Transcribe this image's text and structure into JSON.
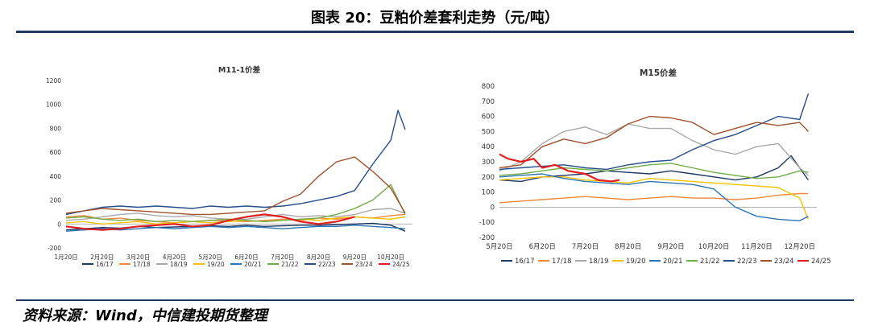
{
  "page": {
    "title": "图表 20：豆粕价差套利走势（元/吨）",
    "source": "资料来源：Wind，中信建投期货整理"
  },
  "colors": {
    "16/17": "#1f3864",
    "17/18": "#f0893c",
    "18/19": "#a9a9a9",
    "19/20": "#f2c200",
    "20/21": "#2e75b6",
    "21/22": "#70ad47",
    "22/23": "#264e8c",
    "23/24": "#a0522d",
    "24/25": "#e02020"
  },
  "chart_data": [
    {
      "type": "line",
      "title": "M11-1价差",
      "ylim": [
        -200,
        1200
      ],
      "yticks": [
        -200,
        0,
        200,
        400,
        600,
        800,
        1000,
        1200
      ],
      "categories": [
        "1月20日",
        "2月20日",
        "3月20日",
        "4月20日",
        "5月20日",
        "6月20日",
        "7月20日",
        "8月20日",
        "9月20日",
        "10月20日"
      ],
      "x_range": [
        0,
        9.6
      ],
      "series": [
        {
          "name": "16/17",
          "x": [
            0,
            0.5,
            1,
            1.5,
            2,
            2.5,
            3,
            3.5,
            4,
            4.5,
            5,
            5.5,
            6,
            6.5,
            7,
            7.5,
            8,
            8.5,
            9,
            9.4
          ],
          "values": [
            -50,
            -40,
            -30,
            -35,
            -20,
            -30,
            -25,
            -20,
            -15,
            -20,
            -10,
            -20,
            -15,
            -10,
            -10,
            -5,
            0,
            5,
            -10,
            -60
          ]
        },
        {
          "name": "17/18",
          "x": [
            0,
            0.5,
            1,
            1.5,
            2,
            2.5,
            3,
            3.5,
            4,
            4.5,
            5,
            5.5,
            6,
            6.5,
            7,
            7.5,
            8,
            8.5,
            9,
            9.4
          ],
          "values": [
            60,
            70,
            40,
            50,
            30,
            20,
            10,
            20,
            30,
            25,
            20,
            30,
            40,
            30,
            50,
            40,
            60,
            50,
            70,
            80
          ]
        },
        {
          "name": "18/19",
          "x": [
            0,
            0.5,
            1,
            1.5,
            2,
            2.5,
            3,
            3.5,
            4,
            4.5,
            5,
            5.5,
            6,
            6.5,
            7,
            7.5,
            8,
            8.5,
            9,
            9.4
          ],
          "values": [
            30,
            40,
            60,
            80,
            90,
            70,
            60,
            70,
            50,
            40,
            40,
            60,
            80,
            60,
            70,
            60,
            80,
            120,
            130,
            90
          ]
        },
        {
          "name": "19/20",
          "x": [
            0,
            0.5,
            1,
            1.5,
            2,
            2.5,
            3,
            3.5,
            4,
            4.5,
            5,
            5.5,
            6,
            6.5,
            7,
            7.5,
            8,
            8.5,
            9,
            9.4
          ],
          "values": [
            10,
            20,
            0,
            10,
            20,
            0,
            10,
            20,
            10,
            20,
            30,
            20,
            30,
            40,
            30,
            50,
            60,
            50,
            40,
            60
          ]
        },
        {
          "name": "20/21",
          "x": [
            0,
            0.5,
            1,
            1.5,
            2,
            2.5,
            3,
            3.5,
            4,
            4.5,
            5,
            5.5,
            6,
            6.5,
            7,
            7.5,
            8,
            8.5,
            9,
            9.4
          ],
          "values": [
            -60,
            -50,
            -40,
            -50,
            -40,
            -30,
            -40,
            -30,
            -20,
            -30,
            -20,
            -30,
            -40,
            -30,
            -20,
            -20,
            -10,
            -20,
            -30,
            -40
          ]
        },
        {
          "name": "21/22",
          "x": [
            0,
            0.5,
            1,
            1.5,
            2,
            2.5,
            3,
            3.5,
            4,
            4.5,
            5,
            5.5,
            6,
            6.5,
            7,
            7.5,
            8,
            8.5,
            9,
            9.4
          ],
          "values": [
            50,
            60,
            40,
            30,
            40,
            20,
            30,
            20,
            30,
            40,
            30,
            20,
            30,
            40,
            50,
            80,
            130,
            200,
            330,
            80
          ]
        },
        {
          "name": "22/23",
          "x": [
            0,
            0.5,
            1,
            1.5,
            2,
            2.5,
            3,
            3.5,
            4,
            4.5,
            5,
            5.5,
            6,
            6.5,
            7,
            7.5,
            8,
            8.5,
            9,
            9.2,
            9.4
          ],
          "values": [
            80,
            110,
            140,
            150,
            140,
            150,
            140,
            130,
            150,
            140,
            150,
            140,
            150,
            170,
            200,
            230,
            280,
            500,
            700,
            950,
            790
          ]
        },
        {
          "name": "23/24",
          "x": [
            0,
            0.5,
            1,
            1.5,
            2,
            2.5,
            3,
            3.5,
            4,
            4.5,
            5,
            5.5,
            6,
            6.5,
            7,
            7.5,
            8,
            8.5,
            9,
            9.4
          ],
          "values": [
            90,
            110,
            130,
            120,
            110,
            100,
            90,
            80,
            80,
            90,
            100,
            110,
            190,
            250,
            400,
            520,
            560,
            440,
            300,
            90
          ]
        },
        {
          "name": "24/25",
          "x": [
            0,
            0.5,
            1,
            1.5,
            2,
            2.5,
            3,
            3.5,
            4,
            4.5,
            5,
            5.5,
            6,
            6.5,
            7,
            7.5,
            8
          ],
          "values": [
            -20,
            -40,
            -50,
            -40,
            -20,
            -10,
            0,
            -20,
            -10,
            30,
            60,
            80,
            60,
            20,
            0,
            20,
            60
          ]
        }
      ]
    },
    {
      "type": "line",
      "title": "M15价差",
      "ylim": [
        -200,
        800
      ],
      "yticks": [
        -200,
        -100,
        0,
        100,
        200,
        300,
        400,
        500,
        600,
        700,
        800
      ],
      "categories": [
        "5月20日",
        "6月20日",
        "7月20日",
        "8月20日",
        "9月20日",
        "10月20日",
        "11月20日",
        "12月20日"
      ],
      "x_range": [
        0,
        7.4
      ],
      "series": [
        {
          "name": "16/17",
          "x": [
            0,
            0.5,
            1,
            1.5,
            2,
            2.5,
            3,
            3.5,
            4,
            4.5,
            5,
            5.5,
            6,
            6.5,
            6.8,
            7,
            7.2
          ],
          "values": [
            180,
            170,
            200,
            210,
            220,
            240,
            230,
            220,
            240,
            220,
            200,
            180,
            200,
            260,
            340,
            260,
            180
          ]
        },
        {
          "name": "17/18",
          "x": [
            0,
            0.5,
            1,
            1.5,
            2,
            2.5,
            3,
            3.5,
            4,
            4.5,
            5,
            5.5,
            6,
            6.5,
            7,
            7.2
          ],
          "values": [
            30,
            40,
            50,
            60,
            70,
            60,
            50,
            60,
            70,
            60,
            60,
            50,
            60,
            80,
            90,
            90
          ]
        },
        {
          "name": "18/19",
          "x": [
            0,
            0.5,
            1,
            1.5,
            2,
            2.5,
            3,
            3.5,
            4,
            4.5,
            5,
            5.5,
            6,
            6.5,
            7,
            7.2
          ],
          "values": [
            240,
            300,
            420,
            500,
            530,
            480,
            550,
            520,
            520,
            440,
            380,
            350,
            400,
            420,
            260,
            210
          ]
        },
        {
          "name": "19/20",
          "x": [
            0,
            0.5,
            1,
            1.5,
            2,
            2.5,
            3,
            3.5,
            4,
            4.5,
            5,
            5.5,
            6,
            6.5,
            7,
            7.2
          ],
          "values": [
            180,
            190,
            200,
            200,
            180,
            170,
            160,
            190,
            180,
            170,
            160,
            150,
            140,
            130,
            60,
            -80
          ]
        },
        {
          "name": "20/21",
          "x": [
            0,
            0.5,
            1,
            1.5,
            2,
            2.5,
            3,
            3.5,
            4,
            4.5,
            5,
            5.5,
            6,
            6.5,
            7,
            7.2
          ],
          "values": [
            200,
            210,
            220,
            190,
            170,
            160,
            150,
            170,
            160,
            150,
            120,
            0,
            -60,
            -80,
            -90,
            -60
          ]
        },
        {
          "name": "21/22",
          "x": [
            0,
            0.5,
            1,
            1.5,
            2,
            2.5,
            3,
            3.5,
            4,
            4.5,
            5,
            5.5,
            6,
            6.5,
            7,
            7.2
          ],
          "values": [
            210,
            220,
            240,
            260,
            250,
            240,
            260,
            280,
            290,
            260,
            230,
            210,
            190,
            200,
            240,
            230
          ]
        },
        {
          "name": "22/23",
          "x": [
            0,
            0.5,
            1,
            1.5,
            2,
            2.5,
            3,
            3.5,
            4,
            4.5,
            5,
            5.5,
            6,
            6.5,
            7,
            7.2
          ],
          "values": [
            250,
            260,
            270,
            280,
            260,
            250,
            280,
            300,
            310,
            380,
            440,
            480,
            540,
            600,
            580,
            750
          ]
        },
        {
          "name": "23/24",
          "x": [
            0,
            0.5,
            1,
            1.5,
            2,
            2.5,
            3,
            3.5,
            4,
            4.5,
            5,
            5.5,
            6,
            6.5,
            7,
            7.2
          ],
          "values": [
            260,
            280,
            400,
            450,
            420,
            460,
            550,
            600,
            590,
            560,
            480,
            520,
            560,
            540,
            560,
            500
          ]
        },
        {
          "name": "24/25",
          "x": [
            0,
            0.2,
            0.5,
            0.8,
            1,
            1.3,
            1.6,
            2,
            2.3,
            2.6,
            2.8
          ],
          "values": [
            350,
            320,
            300,
            320,
            260,
            280,
            240,
            220,
            180,
            170,
            180
          ]
        }
      ]
    }
  ]
}
